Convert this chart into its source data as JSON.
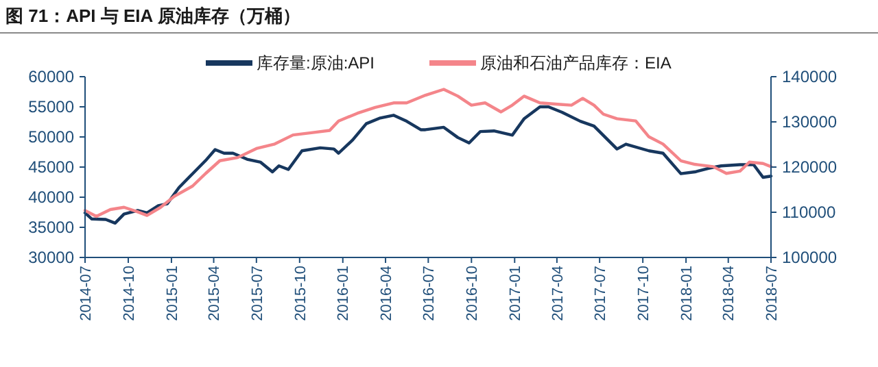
{
  "chart_data": {
    "type": "line",
    "title": "图 71：API 与 EIA 原油库存（万桶）",
    "xlim": [
      "2014-07",
      "2018-07"
    ],
    "xticks": [
      "2014-07",
      "2014-10",
      "2015-01",
      "2015-04",
      "2015-07",
      "2015-10",
      "2016-01",
      "2016-04",
      "2016-07",
      "2016-10",
      "2017-01",
      "2017-04",
      "2017-07",
      "2017-10",
      "2018-01",
      "2018-04",
      "2018-07"
    ],
    "ylim": [
      30000,
      60000
    ],
    "yticks": [
      30000,
      35000,
      40000,
      45000,
      50000,
      55000,
      60000
    ],
    "y2lim": [
      100000,
      140000
    ],
    "y2ticks": [
      100000,
      110000,
      120000,
      130000,
      140000
    ],
    "legend": "top",
    "grid": false,
    "series": [
      {
        "name": "库存量:原油:API",
        "color": "#17375e",
        "x": [
          "2014-07-01",
          "2014-07-15",
          "2014-08-14",
          "2014-09-03",
          "2014-09-22",
          "2014-10-21",
          "2014-11-10",
          "2014-12-04",
          "2014-12-23",
          "2015-01-17",
          "2015-02-15",
          "2015-03-15",
          "2015-04-04",
          "2015-04-23",
          "2015-05-12",
          "2015-06-11",
          "2015-07-10",
          "2015-08-04",
          "2015-08-18",
          "2015-09-07",
          "2015-10-06",
          "2015-11-14",
          "2015-12-13",
          "2015-12-23",
          "2016-01-22",
          "2016-02-20",
          "2016-03-19",
          "2016-04-18",
          "2016-05-16",
          "2016-06-15",
          "2016-06-25",
          "2016-08-03",
          "2016-09-02",
          "2016-09-26",
          "2016-10-20",
          "2016-11-18",
          "2016-12-27",
          "2017-01-21",
          "2017-02-24",
          "2017-03-14",
          "2017-04-12",
          "2017-05-21",
          "2017-06-19",
          "2017-08-07",
          "2017-08-26",
          "2017-10-14",
          "2017-11-13",
          "2017-12-21",
          "2018-01-20",
          "2018-02-18",
          "2018-03-17",
          "2018-04-26",
          "2018-05-25",
          "2018-06-14",
          "2018-07-01"
        ],
        "values": [
          37400,
          36400,
          36300,
          35700,
          37200,
          37800,
          37400,
          38600,
          38900,
          41600,
          43900,
          46100,
          47900,
          47300,
          47300,
          46300,
          45800,
          44200,
          45200,
          44600,
          47700,
          48200,
          48000,
          47300,
          49500,
          52200,
          53100,
          53600,
          52600,
          51200,
          51200,
          51600,
          49900,
          49000,
          50900,
          51000,
          50300,
          53000,
          55000,
          55000,
          54100,
          52600,
          51800,
          48000,
          48800,
          47700,
          47300,
          43900,
          44200,
          44800,
          45200,
          45400,
          45400,
          43300,
          43500
        ]
      },
      {
        "name": "原油和石油产品库存：EIA",
        "color": "#f4858a",
        "axis": "y2",
        "x": [
          "2014-07-01",
          "2014-07-25",
          "2014-08-24",
          "2014-09-22",
          "2014-10-21",
          "2014-11-10",
          "2014-12-09",
          "2015-01-08",
          "2015-02-15",
          "2015-03-15",
          "2015-04-14",
          "2015-05-22",
          "2015-07-01",
          "2015-08-09",
          "2015-09-17",
          "2015-10-26",
          "2015-12-04",
          "2015-12-23",
          "2016-02-01",
          "2016-03-10",
          "2016-04-18",
          "2016-05-16",
          "2016-06-25",
          "2016-08-03",
          "2016-09-02",
          "2016-10-01",
          "2016-10-30",
          "2016-12-03",
          "2016-12-27",
          "2017-01-21",
          "2017-02-24",
          "2017-04-03",
          "2017-05-02",
          "2017-05-26",
          "2017-06-19",
          "2017-07-09",
          "2017-08-07",
          "2017-09-16",
          "2017-10-14",
          "2017-11-13",
          "2017-12-21",
          "2018-01-20",
          "2018-02-28",
          "2018-03-28",
          "2018-04-26",
          "2018-05-16",
          "2018-06-14",
          "2018-07-01"
        ],
        "values": [
          110400,
          109100,
          110600,
          111100,
          110100,
          109300,
          111100,
          113600,
          115800,
          118600,
          121400,
          122100,
          124100,
          125100,
          127100,
          127600,
          128100,
          130200,
          131900,
          133200,
          134200,
          134200,
          135900,
          137200,
          135700,
          133700,
          134200,
          132200,
          133700,
          135700,
          134200,
          133900,
          133700,
          135200,
          133700,
          131700,
          130700,
          130200,
          126700,
          125100,
          121400,
          120600,
          120100,
          118600,
          119100,
          121100,
          120800,
          120100
        ]
      }
    ]
  }
}
